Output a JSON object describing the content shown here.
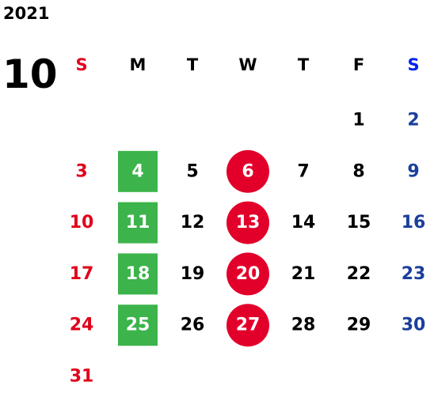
{
  "year": "2021",
  "month": "10",
  "columns": [
    {
      "label": "S",
      "color": "#e0001b"
    },
    {
      "label": "M",
      "color": "#000000",
      "badge": "square",
      "badge_color": "#3cb44b"
    },
    {
      "label": "T",
      "color": "#000000"
    },
    {
      "label": "W",
      "color": "#000000",
      "badge": "circle",
      "badge_color": "#e2002a"
    },
    {
      "label": "T",
      "color": "#000000"
    },
    {
      "label": "F",
      "color": "#000000"
    },
    {
      "label": "S",
      "color": "#1a3f9c",
      "header_color": "#0022ee"
    }
  ],
  "weeks": [
    [
      null,
      null,
      null,
      null,
      null,
      1,
      2
    ],
    [
      3,
      4,
      5,
      6,
      7,
      8,
      9
    ],
    [
      10,
      11,
      12,
      13,
      14,
      15,
      16
    ],
    [
      17,
      18,
      19,
      20,
      21,
      22,
      23
    ],
    [
      24,
      25,
      26,
      27,
      28,
      29,
      30
    ],
    [
      31
    ]
  ]
}
